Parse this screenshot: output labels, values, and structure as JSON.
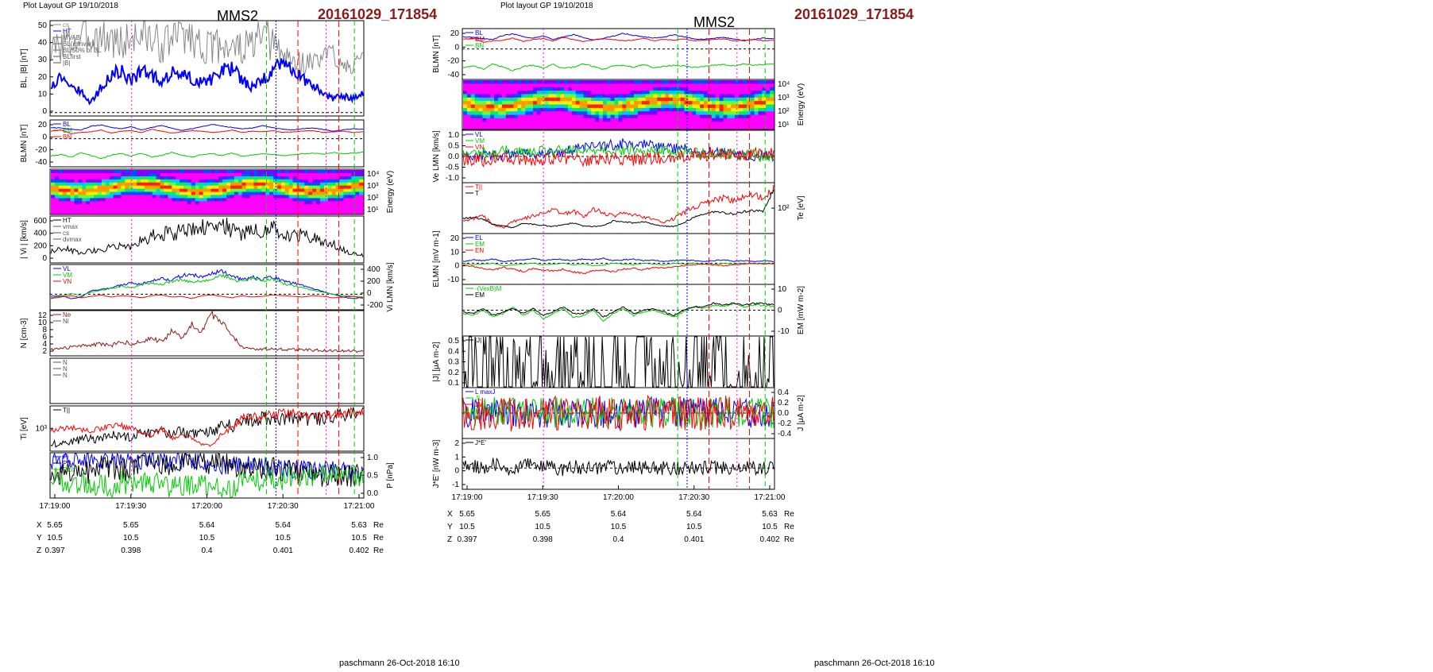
{
  "colors": {
    "red": "#ff0000",
    "green": "#00cc00",
    "blue": "#0000ff",
    "black": "#000000",
    "magenta": "#ff00ff",
    "gray": "#888888",
    "dark_red": "#8B1A1A",
    "cyan": "#00b0d0"
  },
  "time_ticks": [
    "17:19:00",
    "17:19:30",
    "17:20:00",
    "17:20:30",
    "17:21:00"
  ],
  "left": {
    "header": "Plot Layout GP 19/10/2018",
    "title": "MMS2",
    "date_tag": "20161029_171854",
    "footer": "paschmann 26-Oct-2018 16:10"
  },
  "right": {
    "header": "Plot layout GP 19/10/2018",
    "title": "MMS2",
    "date_tag": "20161029_171854",
    "footer": "paschmann 26-Oct-2018 16:10"
  },
  "ephemeris": {
    "unit": "Re",
    "rows": [
      {
        "label": "X",
        "values": [
          "5.65",
          "5.65",
          "5.64",
          "5.64",
          "5.63"
        ]
      },
      {
        "label": "Y",
        "values": [
          "10.5",
          "10.5",
          "10.5",
          "10.5",
          "10.5"
        ]
      },
      {
        "label": "Z",
        "values": [
          "0.397",
          "0.398",
          "0.4",
          "0.401",
          "0.402"
        ]
      }
    ]
  },
  "chart_data": [
    {
      "type": "line",
      "panel": "left-1",
      "ylabel": "BL, |B| [nT]",
      "ylim": [
        -2,
        55
      ],
      "yticks": [
        "50",
        "40",
        "30",
        "20",
        "10",
        "0"
      ],
      "legend": [
        "cs",
        "HT",
        "MVAB",
        "BL(minvar)",
        "BL 50% of BL",
        "BLfirst",
        "|B|"
      ],
      "series": [
        {
          "name": "|B|",
          "shape": "1.00:36,41,42,44,47,45,44,41,45,47,44,40,44,49,45,40,38,42,39,38,41,45,41,35,31,29,30,33,35,32,29,28",
          "color": "gray"
        },
        {
          "name": "BL(minvar)",
          "shape": "0.60:16,22,17,12,6,15,23,25,19,25,22,19,24,23,20,18,20,25,26,20,15,19,25,30,27,20,17,12,8,10,8,11",
          "color": "blue"
        }
      ]
    },
    {
      "type": "line",
      "panel": "left-2",
      "ylabel": "BLMN [nT]",
      "ylim": [
        -45,
        30
      ],
      "yticks": [
        "20",
        "0",
        "-20",
        "-40"
      ],
      "legend": [
        "BL",
        "BM",
        "BN"
      ],
      "series": [
        {
          "name": "BL",
          "shape": "0.10:18,17,15,14,20,22,18,16,19,14,18,21,17,13,16,19,23,20,18,16,17,21,18,15,14,16,17,15,12,14,16,15",
          "color": "blue"
        },
        {
          "name": "BM",
          "shape": "0.10:-28,-25,-30,-22,-27,-32,-26,-24,-28,-23,-29,-27,-22,-26,-30,-25,-24,-27,-23,-28,-26,-24,-25,-27,-26,-24,-23,-25,-22,-24,-23,-22",
          "color": "green"
        },
        {
          "name": "BN",
          "shape": "0.10:12,14,8,10,11,14,9,12,13,10,15,12,9,11,13,12,10,11,14,10,12,11,13,10,11,12,13,10,11,12,10,11",
          "color": "red"
        }
      ]
    },
    {
      "type": "heatmap",
      "panel": "left-3",
      "ylabel": "Energy (eV)",
      "yticks": [
        "10^4",
        "10^3",
        "10^2",
        "10^1"
      ]
    },
    {
      "type": "line",
      "panel": "left-4",
      "ylabel": "| Vi | [km/s]",
      "ylim": [
        0,
        620
      ],
      "yticks": [
        "600",
        "400",
        "200",
        "0"
      ],
      "legend": [
        "HT",
        "vmax",
        "cs",
        "dvmax"
      ],
      "series": [
        {
          "name": "|Vi|",
          "shape": "1.00:140,200,170,130,160,180,210,250,220,300,350,400,380,430,460,500,490,540,420,380,430,400,460,380,350,370,330,290,250,170,120,100",
          "color": "black"
        }
      ]
    },
    {
      "type": "line",
      "panel": "left-5",
      "ylabel": "Vi LMN [km/s]",
      "ylim": [
        -220,
        420
      ],
      "yticks": [
        "400",
        "200",
        "0",
        "-200"
      ],
      "legend": [
        "VL",
        "VM",
        "VN"
      ],
      "series": [
        {
          "name": "VL",
          "shape": "0.45:-30,-20,-60,-40,50,70,90,130,160,140,190,230,200,260,280,240,300,330,250,210,240,200,250,190,160,130,80,40,0,-40,-60,-50",
          "color": "blue"
        },
        {
          "name": "VM",
          "shape": "0.40:-50,-30,10,-20,30,60,80,110,90,130,160,140,180,200,170,190,220,260,210,180,230,190,210,150,120,90,60,30,0,-20,-30,-40",
          "color": "green"
        },
        {
          "name": "VN",
          "shape": "0.25:-60,-40,-20,-50,-30,-10,-40,-20,-30,-50,-20,-10,-40,-30,-60,-20,-10,-30,-50,-20,-40,-30,-10,-20,-30,-40,-20,-30,-50,-40,-30,-60",
          "color": "red"
        }
      ]
    },
    {
      "type": "line",
      "panel": "left-6",
      "ylabel": "N [cm-3]",
      "ylim": [
        0,
        13
      ],
      "yticks": [
        "12",
        "10",
        "8",
        "6",
        "4",
        "2"
      ],
      "legend": [
        "Ne",
        "Ni"
      ],
      "series": [
        {
          "name": "Ni",
          "shape": "0.30:2,2,2.5,3,3,3.5,3,4,3.5,4,5,4,7,5,9,7,12,10,6,2.5,2,2,2,1.8,1.8,1.7,1.6,1.6,1.5,1.4,1.4,1.3",
          "color": "dark_red"
        }
      ]
    },
    {
      "type": "line",
      "panel": "left-7",
      "legend": [
        "N",
        "N",
        "N"
      ],
      "yticks": []
    },
    {
      "type": "line",
      "panel": "left-8",
      "ylabel": "Ti [eV]",
      "yticks": [
        "10^3"
      ],
      "legend": [
        "T||"
      ],
      "series": [
        {
          "name": "T par",
          "shape": "0.50:40,42,44,46,48,46,50,52,48,56,54,60,50,58,52,54,56,66,64,70,72,74,73,75,76,74,72,75,78,80,79,81",
          "color": "black"
        },
        {
          "name": "T perp",
          "shape": "0.50:36,38,40,38,36,40,42,44,40,30,25,38,20,28,22,10,8,30,40,58,60,62,64,66,68,66,60,62,64,66,68,70",
          "color": "red"
        }
      ]
    },
    {
      "type": "line",
      "panel": "left-9",
      "ylabel": "P [nPa]",
      "ylim": [
        0,
        1.15
      ],
      "yticks": [
        "1.0",
        "0.5",
        "0.0"
      ],
      "legend": [
        "Pi",
        "PB",
        "Ptot"
      ],
      "series": [
        {
          "name": "PB",
          "shape": "0.25:0.95,0.98,0.97,1.0,0.99,0.98,0.97,1.0,0.96,0.98,0.95,0.94,0.96,0.92,0.90,0.88,0.85,0.82,0.84,0.86,0.84,0.80,0.78,0.75,0.72,0.70,0.68,0.70,0.72,0.68,0.66,0.70",
          "color": "blue"
        },
        {
          "name": "Ptot",
          "shape": "0.30:0.55,0.65,0.60,0.70,0.62,0.80,0.72,0.68,0.75,0.80,0.85,0.78,0.82,0.88,0.90,0.92,0.86,0.95,0.80,0.78,0.75,0.72,0.74,0.70,0.65,0.60,0.62,0.58,0.60,0.55,0.58,0.52",
          "color": "black"
        },
        {
          "name": "Pi",
          "shape": "0.30:0.50,0.45,0.40,0.42,0.38,0.35,0.30,0.40,0.35,0.30,0.42,0.32,0.28,0.30,0.35,0.30,0.28,0.25,0.30,0.40,0.42,0.45,0.48,0.50,0.52,0.55,0.58,0.55,0.60,0.62,0.58,0.60",
          "color": "green"
        }
      ]
    },
    {
      "type": "line",
      "panel": "right-1",
      "ylabel": "BLMN [nT]",
      "ylim": [
        -45,
        30
      ],
      "yticks": [
        "20",
        "0",
        "-20",
        "-40"
      ],
      "legend": [
        "BL",
        "BM",
        "BN"
      ],
      "series": [
        {
          "name": "BL",
          "shape": "0.12:18,17,15,14,20,22,18,16,19,14,18,21,17,13,16,19,23,20,18,16,17,21,18,15,14,16,17,15,12,14,16,15",
          "color": "blue"
        },
        {
          "name": "BN",
          "shape": "0.12:14,16,10,12,13,16,11,14,15,12,17,14,11,13,15,14,12,13,16,12,14,13,15,12,13,14,15,12,13,14,12,13",
          "color": "red"
        },
        {
          "name": "BM",
          "shape": "0.12:-28,-25,-30,-22,-27,-32,-26,-24,-28,-23,-29,-27,-22,-26,-30,-25,-24,-27,-23,-28,-26,-24,-25,-27,-26,-24,-23,-25,-22,-24,-23,-22",
          "color": "green"
        }
      ]
    },
    {
      "type": "heatmap",
      "panel": "right-2",
      "ylabel": "Energy (eV)",
      "yticks": [
        "10^4",
        "10^3",
        "10^2",
        "10^1"
      ]
    },
    {
      "type": "line",
      "panel": "right-3",
      "ylabel": "Ve LMN [km/s]",
      "ylim": [
        -1.2,
        1.2
      ],
      "yticks": [
        "1.0",
        "0.5",
        "0.0",
        "-0.5",
        "-1.0"
      ],
      "legend": [
        "VL",
        "VM",
        "VN"
      ],
      "series": [
        {
          "name": "VL",
          "shape": "0.25:0.0,0.05,0.1,0.05,0.0,0.1,0.2,0.15,0.1,0.25,0.2,0.3,0.4,0.5,0.45,0.55,0.6,0.5,0.55,0.45,0.4,0.35,0.4,0.3,0.2,0.25,0.15,0.1,0.05,0.0,0.05,0.0",
          "color": "blue"
        },
        {
          "name": "VM",
          "shape": "0.25:0.1,0.15,0.2,0.1,0.25,0.3,0.2,0.15,0.25,0.2,0.3,0.25,0.2,0.3,0.35,0.3,0.25,0.3,0.2,0.25,0.3,0.2,0.25,0.2,0.15,0.1,0.15,0.1,0.05,0.1,0.0,0.05",
          "color": "green"
        },
        {
          "name": "VN",
          "shape": "0.30:-0.1,-0.15,-0.2,-0.1,-0.05,-0.15,-0.1,-0.2,-0.15,-0.1,-0.05,-0.1,-0.15,-0.2,-0.1,-0.05,-0.1,-0.15,-0.1,-0.05,-0.1,0.0,0.05,0.1,0.05,0.1,0.15,0.1,0.05,0.1,0.15,0.1",
          "color": "red"
        }
      ]
    },
    {
      "type": "line",
      "panel": "right-4",
      "ylabel": "Te [eV]",
      "yticks": [
        "10^2"
      ],
      "legend": [
        "T||",
        "T"
      ],
      "series": [
        {
          "name": "T par",
          "shape": "0.30:30,35,40,25,20,30,35,40,45,50,42,48,38,52,45,40,44,42,38,36,30,35,45,55,60,68,70,66,72,74,72,86",
          "color": "red"
        },
        {
          "name": "T perp",
          "shape": "0.20:28,30,26,18,15,12,20,18,16,14,18,20,15,14,16,24,22,20,22,18,15,14,20,30,35,40,38,36,40,42,40,80",
          "color": "black"
        }
      ]
    },
    {
      "type": "line",
      "panel": "right-5",
      "ylabel": "ELMN [mV m-1]",
      "ylim": [
        -25,
        35
      ],
      "yticks": [
        "20",
        "10",
        "0",
        "-10"
      ],
      "legend": [
        "EL",
        "EM",
        "EN"
      ],
      "series": [
        {
          "name": "EL",
          "shape": "0.30:2,4,3,5,2,3,4,6,3,5,4,3,5,4,6,3,4,5,3,4,2,3,4,3,2,3,4,2,3,2,3,2",
          "color": "blue"
        },
        {
          "name": "EM",
          "shape": "0.30:0,-2,-1,0,-3,-2,-1,0,-2,-1,0,-2,-1,-3,-2,0,-1,-2,0,-1,-2,0,-1,0,-1,-2,0,-1,0,-1,0,-1",
          "color": "green"
        },
        {
          "name": "EN",
          "shape": "0.35:-2,-4,-6,-8,-5,-7,-10,-6,-8,-9,-7,-10,-12,-9,-8,-10,-7,-6,-8,-5,-6,-4,-3,-2,-1,-2,-3,-2,-1,0,-1,0",
          "color": "red"
        }
      ]
    },
    {
      "type": "line",
      "panel": "right-6",
      "ylabel": "EM [mW m-2]",
      "ylim": [
        -15,
        15
      ],
      "yticks": [
        "10",
        "0",
        "-10"
      ],
      "legend": [
        "-(VexB)M",
        "EM"
      ],
      "series": [
        {
          "name": "EM",
          "shape": "0.30:-2,-3,0,-4,-2,2,-3,0,-5,-2,1,-4,-3,0,-6,-2,1,-3,-1,0,-2,-4,-1,2,1,3,2,4,2,3,3,2",
          "color": "green"
        },
        {
          "name": "-(VexB)M",
          "shape": "0.25:-1,-2,1,-3,-1,1,-2,1,-3,-1,2,-2,-2,1,-4,-1,2,-2,0,1,-1,-3,0,2,2,4,3,4,3,4,4,3",
          "color": "black"
        }
      ]
    },
    {
      "type": "line",
      "panel": "right-7",
      "ylabel": "|J| [μA m-2]",
      "ylim": [
        0,
        0.55
      ],
      "yticks": [
        "0.5",
        "0.4",
        "0.3",
        "0.2",
        "0.1"
      ],
      "legend": [
        "|J|"
      ],
      "series": [
        {
          "name": "|J|",
          "shape": "0.80:0.12,0.18,0.15,0.2,0.25,0.18,0.14,0.22,0.16,0.12,0.1,0.12,0.15,0.18,0.12,0.1,0.14,0.12,0.1,0.12,0.08,0.1,0.09,0.08,0.07,0.08,0.07,0.06,0.06,0.05,0.05,0.05",
          "color": "black"
        }
      ]
    },
    {
      "type": "line",
      "panel": "right-8",
      "ylabel": "J [μA m-2]",
      "ylim": [
        -0.5,
        0.5
      ],
      "yticks": [
        "0.4",
        "0.2",
        "0.0",
        "-0.2",
        "-0.4"
      ],
      "legend": [
        "L maxJ",
        "JL",
        "JM"
      ],
      "series": [
        {
          "name": "JL",
          "shape": "0.30:0,0.02,0,0.03,0,0.01,0,0.02,0,0.01,0,0.02,0,0.01,0,0.02,0,0.01,0,0.02,0,0.01,0,0.01,0,0.01,0,0.01,0,0.01,0,0",
          "color": "blue"
        },
        {
          "name": "JM",
          "shape": "0.30:0,0.01,0,0.02,0,0.01,0,0.01,0,0.02,0,0.01,0,0.01,0,0.02,0,0.01,0,0.01,0,0.02,0,0.01,0,0.01,0,0.01,0,0,0,0",
          "color": "green"
        },
        {
          "name": "JN",
          "shape": "0.35:0,-0.02,0,-0.01,0,-0.02,0,-0.01,0,-0.02,0,-0.01,0,-0.02,0,-0.01,0,-0.02,0,-0.01,0,-0.01,0,-0.01,0,-0.01,0,0,0,0,0,0",
          "color": "red"
        }
      ]
    },
    {
      "type": "line",
      "panel": "right-9",
      "ylabel": "J*E' [nW m-3]",
      "ylim": [
        -1.8,
        2.5
      ],
      "yticks": [
        "2",
        "1",
        "0",
        "-1"
      ],
      "legend": [
        "J*E'"
      ],
      "series": [
        {
          "name": "J*E'",
          "shape": "0.60:0,0.2,-0.1,0.3,0,-0.2,0.4,0.6,0.2,0,-0.3,0.1,0,-0.1,0.2,0,-0.2,0.1,0,0.1,0,-0.1,0,0.05,0,0,0.05,0,0,0,0,0",
          "color": "black"
        }
      ]
    }
  ]
}
